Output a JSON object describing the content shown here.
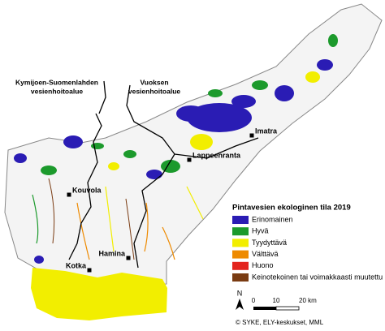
{
  "title_regions": [
    {
      "lines": [
        "Kymijoen-Suomenlahden",
        "vesienhoitoalue"
      ]
    },
    {
      "lines": [
        "Vuoksen",
        "vesienhoitoalue"
      ]
    }
  ],
  "cities": [
    "Imatra",
    "Lappeenranta",
    "Kouvola",
    "Hamina",
    "Kotka"
  ],
  "legend": {
    "title": "Pintavesien ekologinen tila 2019",
    "items": [
      {
        "label": "Erinomainen",
        "color": "#2a1cb4"
      },
      {
        "label": "Hyvä",
        "color": "#1c9a2c"
      },
      {
        "label": "Tyydyttävä",
        "color": "#f2ee00"
      },
      {
        "label": "Välttävä",
        "color": "#ee8a00"
      },
      {
        "label": "Huono",
        "color": "#e3241e"
      },
      {
        "label": "Keinotekoinen tai voimakkaasti muutettu",
        "color": "#7a3b12"
      }
    ]
  },
  "scale": {
    "labels": [
      "0",
      "10",
      "20 km"
    ]
  },
  "north": "N",
  "credit": "© SYKE, ELY-keskukset, MML"
}
